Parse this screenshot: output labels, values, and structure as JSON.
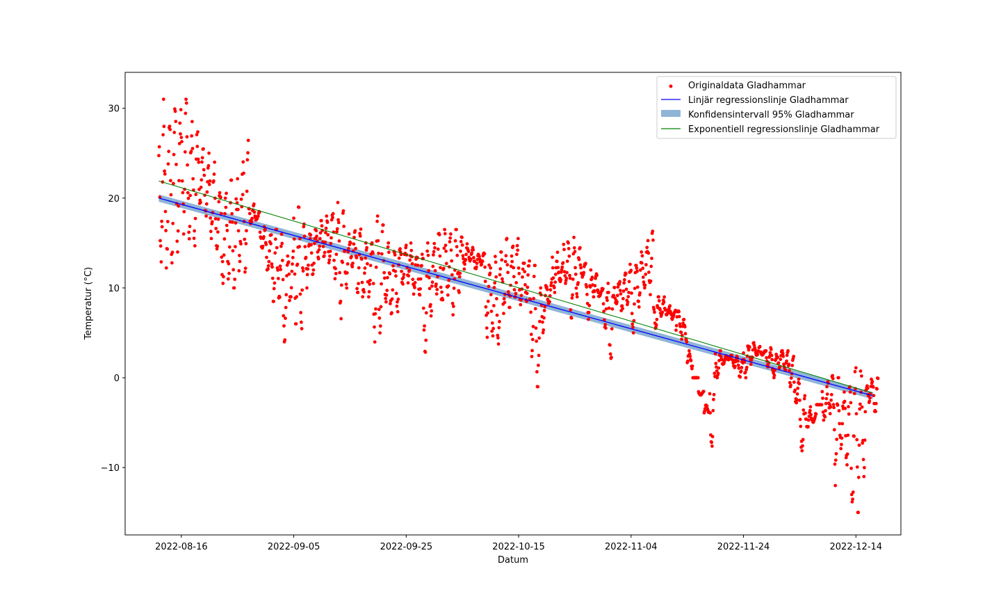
{
  "chart_data": {
    "type": "scatter",
    "title": "",
    "xlabel": "Datum",
    "ylabel": "Temperatur (°C)",
    "xlim": [
      "2022-08-06",
      "2022-12-22"
    ],
    "ylim": [
      -17.5,
      34.0
    ],
    "grid": false,
    "legend_position": "top-right",
    "x_tick_labels": [
      "2022-08-16",
      "2022-09-05",
      "2022-09-25",
      "2022-10-15",
      "2022-11-04",
      "2022-11-24",
      "2022-12-14"
    ],
    "y_tick_labels": [
      "−10",
      "0",
      "10",
      "20",
      "30"
    ],
    "y_ticks": [
      -10,
      0,
      10,
      20,
      30
    ],
    "colors": {
      "points": "#ff0000",
      "linear": "#0000ff",
      "ci": "#7ba7d0",
      "exponential": "#008000"
    },
    "series": [
      {
        "name": "Originaldata Gladhammar",
        "kind": "scatter",
        "x": [
          "2022-08-12",
          "2022-08-13",
          "2022-08-14",
          "2022-08-15",
          "2022-08-16",
          "2022-08-17",
          "2022-08-18",
          "2022-08-19",
          "2022-08-20",
          "2022-08-21",
          "2022-08-22",
          "2022-08-23",
          "2022-08-24",
          "2022-08-25",
          "2022-08-26",
          "2022-08-27",
          "2022-08-28",
          "2022-08-29",
          "2022-08-30",
          "2022-08-31",
          "2022-09-01",
          "2022-09-02",
          "2022-09-03",
          "2022-09-04",
          "2022-09-05",
          "2022-09-06",
          "2022-09-07",
          "2022-09-08",
          "2022-09-09",
          "2022-09-10",
          "2022-09-11",
          "2022-09-12",
          "2022-09-13",
          "2022-09-14",
          "2022-09-15",
          "2022-09-16",
          "2022-09-17",
          "2022-09-18",
          "2022-09-19",
          "2022-09-20",
          "2022-09-21",
          "2022-09-22",
          "2022-09-23",
          "2022-09-24",
          "2022-09-25",
          "2022-09-26",
          "2022-09-27",
          "2022-09-28",
          "2022-09-29",
          "2022-09-30",
          "2022-10-01",
          "2022-10-02",
          "2022-10-03",
          "2022-10-04",
          "2022-10-05",
          "2022-10-06",
          "2022-10-07",
          "2022-10-08",
          "2022-10-09",
          "2022-10-10",
          "2022-10-11",
          "2022-10-12",
          "2022-10-13",
          "2022-10-14",
          "2022-10-15",
          "2022-10-16",
          "2022-10-17",
          "2022-10-18",
          "2022-10-19",
          "2022-10-20",
          "2022-10-21",
          "2022-10-22",
          "2022-10-23",
          "2022-10-24",
          "2022-10-25",
          "2022-10-26",
          "2022-10-27",
          "2022-10-28",
          "2022-10-29",
          "2022-10-30",
          "2022-10-31",
          "2022-11-01",
          "2022-11-02",
          "2022-11-03",
          "2022-11-04",
          "2022-11-05",
          "2022-11-06",
          "2022-11-07",
          "2022-11-08",
          "2022-11-09",
          "2022-11-10",
          "2022-11-11",
          "2022-11-12",
          "2022-11-13",
          "2022-11-14",
          "2022-11-15",
          "2022-11-16",
          "2022-11-17",
          "2022-11-18",
          "2022-11-19",
          "2022-11-20",
          "2022-11-21",
          "2022-11-22",
          "2022-11-23",
          "2022-11-24",
          "2022-11-25",
          "2022-11-26",
          "2022-11-27",
          "2022-11-28",
          "2022-11-29",
          "2022-11-30",
          "2022-12-01",
          "2022-12-02",
          "2022-12-03",
          "2022-12-04",
          "2022-12-05",
          "2022-12-06",
          "2022-12-07",
          "2022-12-08",
          "2022-12-09",
          "2022-12-10",
          "2022-12-11",
          "2022-12-12",
          "2022-12-13",
          "2022-12-14",
          "2022-12-15",
          "2022-12-16",
          "2022-12-17"
        ],
        "y_min": [
          12,
          12,
          11.5,
          14,
          16,
          15,
          14.5,
          19,
          18,
          15.5,
          14,
          10.5,
          11,
          10,
          11,
          10.5,
          17,
          17.5,
          14,
          11.5,
          8.5,
          8.5,
          4,
          8,
          6,
          5,
          10,
          11.5,
          13,
          13.5,
          12,
          11,
          6.5,
          9.5,
          12,
          9.5,
          8.5,
          9,
          2,
          4.5,
          7,
          6,
          6.5,
          10,
          10.5,
          9,
          9,
          1,
          6.5,
          9,
          8,
          9,
          7,
          9.5,
          12,
          13,
          12,
          12.5,
          4.5,
          4,
          3.5,
          7,
          7,
          9,
          8,
          8.5,
          1.5,
          -1,
          5,
          8,
          9.5,
          10.5,
          10.5,
          5.5,
          9,
          11,
          6.5,
          9,
          9,
          4.5,
          1.5,
          8,
          7,
          8,
          5,
          7.5,
          10,
          9,
          5.5,
          6.5,
          7,
          6.5,
          7.5,
          6.5,
          3,
          0,
          -2,
          -3,
          -9,
          0,
          1.5,
          2,
          1,
          0,
          0,
          1.5,
          2.5,
          2.5,
          1,
          0,
          1,
          0.5,
          -1,
          -3,
          -8.5,
          -6,
          -5,
          -3,
          -5,
          -4,
          -12,
          -9,
          -10,
          -14,
          -15,
          -11,
          -3,
          -4
        ],
        "y_max": [
          31,
          28,
          31,
          30,
          31,
          29.5,
          28.5,
          26,
          25,
          24,
          22,
          21,
          22,
          21,
          23,
          27.5,
          19.5,
          18.5,
          17,
          16,
          16.5,
          16,
          15,
          15,
          19,
          19,
          16.5,
          16.5,
          17.5,
          18,
          18.5,
          19.5,
          19,
          16,
          16.5,
          17,
          15,
          15,
          18,
          17,
          15,
          14.5,
          15.5,
          15,
          15,
          14.5,
          14,
          15,
          14.5,
          17,
          16.5,
          16,
          16.5,
          16,
          15,
          14.5,
          14,
          14,
          13.5,
          13.5,
          14,
          15.5,
          14.5,
          15.5,
          13.5,
          13,
          12.5,
          10,
          10.5,
          11,
          14,
          13,
          15.5,
          16,
          15,
          13,
          12,
          12,
          10,
          10.5,
          10.5,
          11,
          11.5,
          13,
          12.5,
          14,
          14.5,
          16.5,
          9,
          9,
          8,
          7.5,
          5,
          4,
          1,
          0,
          -1.5,
          -4,
          1,
          3,
          2.5,
          2.5,
          2.5,
          2,
          4,
          4,
          3.5,
          3,
          3.5,
          3,
          3,
          3,
          2.5,
          0,
          -2,
          -3,
          -4,
          -3,
          -1,
          0.5,
          0,
          -1,
          -1,
          1.5,
          2,
          1.5,
          0,
          0
        ]
      },
      {
        "name": "Linjär regressionslinje Gladhammar",
        "kind": "line",
        "x": [
          "2022-08-12",
          "2022-12-17"
        ],
        "y": [
          20.0,
          -2.0
        ]
      },
      {
        "name": "Konfidensintervall 95% Gladhammar",
        "kind": "band",
        "x": [
          "2022-08-12",
          "2022-12-17"
        ],
        "y_lower": [
          19.6,
          -2.4
        ],
        "y_upper": [
          20.4,
          -1.6
        ]
      },
      {
        "name": "Exponentiell regressionslinje Gladhammar",
        "kind": "line",
        "x": [
          "2022-08-12",
          "2022-12-17"
        ],
        "y": [
          21.9,
          -1.7
        ]
      }
    ]
  }
}
